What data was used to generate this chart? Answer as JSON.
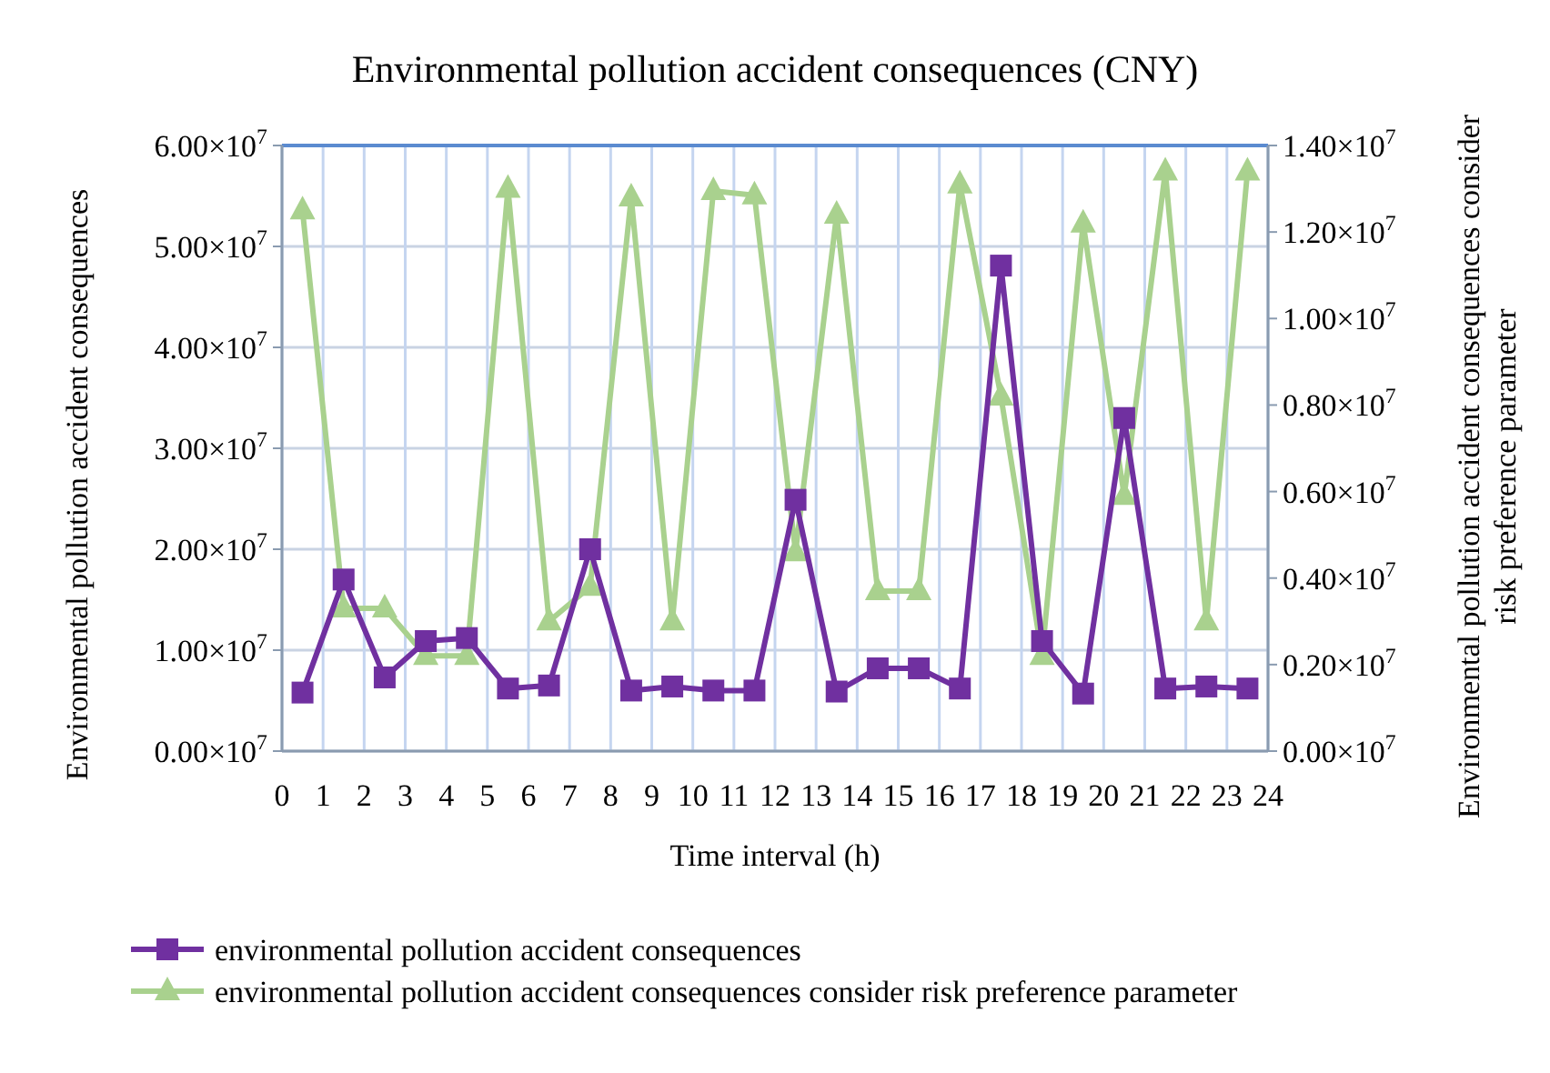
{
  "chart_data": {
    "type": "line",
    "title": "Environmental  pollution accident consequences (CNY)",
    "xlabel": "Time interval (h)",
    "ylabel": "Environmental pollution accident consequences",
    "y2label": "Environmental pollution accident consequences consider risk preference parameter",
    "x": [
      0.5,
      1.5,
      2.5,
      3.5,
      4.5,
      5.5,
      6.5,
      7.5,
      8.5,
      9.5,
      10.5,
      11.5,
      12.5,
      13.5,
      14.5,
      15.5,
      16.5,
      17.5,
      18.5,
      19.5,
      20.5,
      21.5,
      22.5,
      23.5
    ],
    "series": [
      {
        "name": "environmental pollution accident consequences",
        "color": "#7030a0",
        "marker": "square",
        "values": [
          5800000,
          17000000,
          7300000,
          10900000,
          11200000,
          6200000,
          6500000,
          20000000,
          6000000,
          6400000,
          6000000,
          6000000,
          24900000,
          5900000,
          8200000,
          8200000,
          6200000,
          48100000,
          10900000,
          5700000,
          33000000,
          6200000,
          6400000,
          6200000
        ]
      },
      {
        "name": "environmental pollution accident consequences consider risk preference parameter",
        "color": "#a9d18e",
        "marker": "triangle",
        "axis": "y2",
        "values": [
          12500000,
          3300000,
          3300000,
          2200000,
          2200000,
          13000000,
          3000000,
          3800000,
          12800000,
          3000000,
          12950000,
          12850000,
          4600000,
          12400000,
          3700000,
          3700000,
          13100000,
          8200000,
          2200000,
          12200000,
          5900000,
          13400000,
          3000000,
          13400000
        ]
      }
    ],
    "xlim": [
      0,
      24
    ],
    "xticks": [
      0,
      1,
      2,
      3,
      4,
      5,
      6,
      7,
      8,
      9,
      10,
      11,
      12,
      13,
      14,
      15,
      16,
      17,
      18,
      19,
      20,
      21,
      22,
      23,
      24
    ],
    "ylim": [
      0,
      60000000
    ],
    "yticks": [
      {
        "value": 0,
        "label": "0.00×10$^{7}$"
      },
      {
        "value": 10000000,
        "label": "1.00×10$^{7}$"
      },
      {
        "value": 20000000,
        "label": "2.00×10$^{7}$"
      },
      {
        "value": 30000000,
        "label": "3.00×10$^{7}$"
      },
      {
        "value": 40000000,
        "label": "4.00×10$^{7}$"
      },
      {
        "value": 50000000,
        "label": "5.00×10$^{7}$"
      },
      {
        "value": 60000000,
        "label": "6.00×10$^{7}$"
      }
    ],
    "y2lim": [
      0,
      14000000
    ],
    "y2ticks": [
      {
        "value": 0,
        "label": "0.00×10$^{7}$"
      },
      {
        "value": 2000000,
        "label": "0.20×10$^{7}$"
      },
      {
        "value": 4000000,
        "label": "0.40×10$^{7}$"
      },
      {
        "value": 6000000,
        "label": "0.60×10$^{7}$"
      },
      {
        "value": 8000000,
        "label": "0.80×10$^{7}$"
      },
      {
        "value": 10000000,
        "label": "1.00×10$^{7}$"
      },
      {
        "value": 12000000,
        "label": "1.20×10$^{7}$"
      },
      {
        "value": 14000000,
        "label": "1.40×10$^{7}$"
      }
    ],
    "grid": true,
    "legend": "bottom",
    "line_style": "solid"
  }
}
